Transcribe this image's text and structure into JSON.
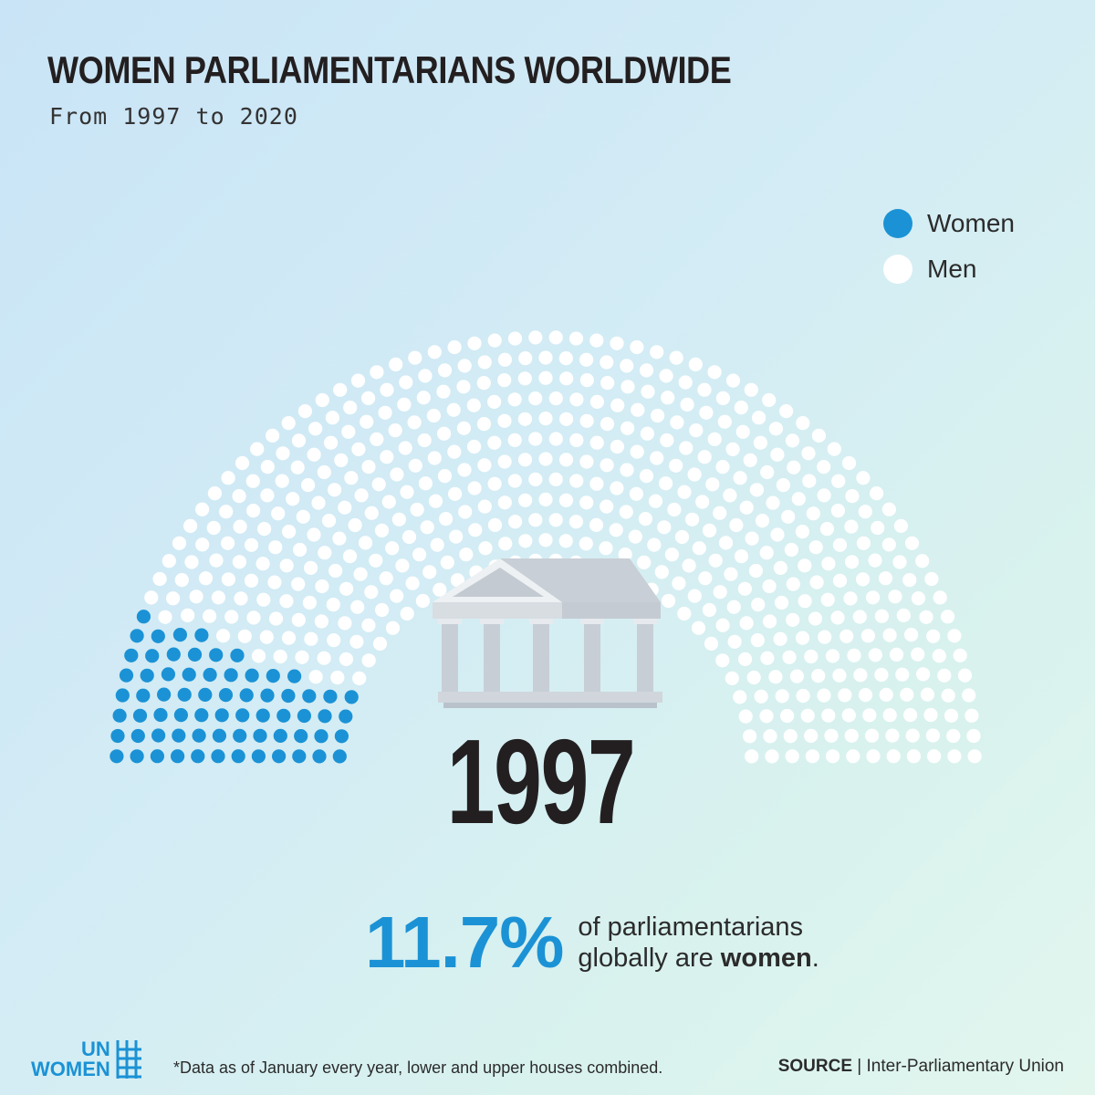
{
  "header": {
    "title": "WOMEN PARLIAMENTARIANS WORLDWIDE",
    "subtitle": "From 1997 to 2020"
  },
  "legend": [
    {
      "label": "Women",
      "color": "#1b92d5"
    },
    {
      "label": "Men",
      "color": "#ffffff"
    }
  ],
  "chart_data": {
    "type": "hemicycle",
    "title": "WOMEN PARLIAMENTARIANS WORLDWIDE",
    "subtitle": "From 1997 to 2020",
    "year": "1997",
    "series": [
      {
        "name": "Women",
        "percent": 11.7,
        "color": "#1b92d5"
      },
      {
        "name": "Men",
        "percent": 88.3,
        "color": "#ffffff"
      }
    ]
  },
  "year_label": "1997",
  "stat": {
    "percent": "11.7%",
    "line1": "of parliamentarians",
    "line2_prefix": "globally are ",
    "line2_bold": "women",
    "line2_suffix": "."
  },
  "footer": {
    "logo_line1": "UN",
    "logo_line2": "WOMEN",
    "footnote": "*Data as of January every year, lower and upper houses combined.",
    "source_label": "SOURCE",
    "source_text": " | Inter-Parliamentary Union"
  },
  "icons": {
    "building": "parliament-building-icon",
    "logo": "un-women-logo-icon"
  }
}
